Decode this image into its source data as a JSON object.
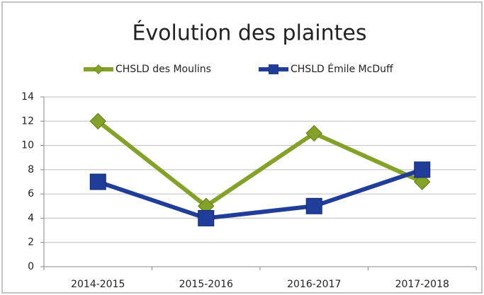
{
  "chart_data": {
    "type": "line",
    "title": "Évolution des plaintes",
    "categories": [
      "2014-2015",
      "2015-2016",
      "2016-2017",
      "2017-2018"
    ],
    "series": [
      {
        "name": "CHSLD des Moulins",
        "color": "#84a22a",
        "marker": "diamond",
        "values": [
          12,
          5,
          11,
          7
        ]
      },
      {
        "name": "CHSLD Émile McDuff",
        "color": "#1f3d99",
        "marker": "square",
        "values": [
          7,
          4,
          5,
          8
        ]
      }
    ],
    "ylim": [
      0,
      14
    ],
    "yticks": [
      0,
      2,
      4,
      6,
      8,
      10,
      12,
      14
    ],
    "grid": true,
    "legend": "top"
  }
}
